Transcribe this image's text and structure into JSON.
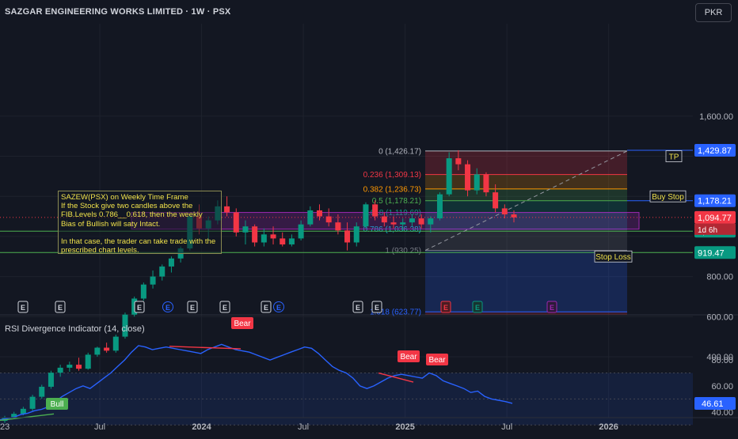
{
  "header": {
    "title": "SAZGAR ENGINEERING WORKS LIMITED · 1W · PSX",
    "currency": "PKR"
  },
  "colors": {
    "up": "#089981",
    "down": "#f23645",
    "accent": "#2962ff",
    "rsi": "#2962ff",
    "fib_text": "#cccccc"
  },
  "chart_data": [
    {
      "type": "candlestick",
      "title": "SAZGAR ENGINEERING WORKS LIMITED · 1W · PSX",
      "y_axis": {
        "ticks": [
          400,
          600,
          800,
          1000,
          1200,
          1400,
          1600
        ],
        "tick_labels": [
          "400.00",
          "600.00",
          "800.00",
          "",
          "",
          "",
          "1,600.00"
        ],
        "position": "right"
      },
      "x_axis": {
        "ticks": [
          "23",
          "Jul",
          "2024",
          "Jul",
          "2025",
          "Jul",
          "2026"
        ],
        "bold_ticks": [
          "2024",
          "2025",
          "2026"
        ]
      },
      "candles": [
        {
          "t": "2023-10",
          "o": 80,
          "h": 105,
          "l": 70,
          "c": 95
        },
        {
          "t": "2023-11",
          "o": 95,
          "h": 125,
          "l": 88,
          "c": 115
        },
        {
          "t": "2023-12",
          "o": 115,
          "h": 150,
          "l": 108,
          "c": 140
        },
        {
          "t": "2024-01",
          "o": 140,
          "h": 210,
          "l": 130,
          "c": 200
        },
        {
          "t": "2024-01",
          "o": 200,
          "h": 260,
          "l": 190,
          "c": 250
        },
        {
          "t": "2024-02",
          "o": 250,
          "h": 330,
          "l": 240,
          "c": 320
        },
        {
          "t": "2024-02",
          "o": 320,
          "h": 360,
          "l": 300,
          "c": 345
        },
        {
          "t": "2024-03",
          "o": 345,
          "h": 375,
          "l": 325,
          "c": 360
        },
        {
          "t": "2024-03",
          "o": 360,
          "h": 395,
          "l": 330,
          "c": 340
        },
        {
          "t": "2024-04",
          "o": 340,
          "h": 420,
          "l": 335,
          "c": 410
        },
        {
          "t": "2024-04",
          "o": 410,
          "h": 450,
          "l": 400,
          "c": 445
        },
        {
          "t": "2024-05",
          "o": 445,
          "h": 470,
          "l": 420,
          "c": 430
        },
        {
          "t": "2024-05",
          "o": 430,
          "h": 510,
          "l": 420,
          "c": 500
        },
        {
          "t": "2024-06",
          "o": 500,
          "h": 620,
          "l": 490,
          "c": 610
        },
        {
          "t": "2024-06",
          "o": 610,
          "h": 700,
          "l": 600,
          "c": 690
        },
        {
          "t": "2024-06",
          "o": 690,
          "h": 770,
          "l": 680,
          "c": 760
        },
        {
          "t": "2024-07",
          "o": 760,
          "h": 830,
          "l": 740,
          "c": 800
        },
        {
          "t": "2024-07",
          "o": 800,
          "h": 860,
          "l": 780,
          "c": 850
        },
        {
          "t": "2024-07",
          "o": 850,
          "h": 900,
          "l": 820,
          "c": 890
        },
        {
          "t": "2024-08",
          "o": 890,
          "h": 950,
          "l": 870,
          "c": 940
        },
        {
          "t": "2024-08",
          "o": 940,
          "h": 1110,
          "l": 930,
          "c": 1100
        },
        {
          "t": "2024-08",
          "o": 1100,
          "h": 1160,
          "l": 1010,
          "c": 1040
        },
        {
          "t": "2024-09",
          "o": 1040,
          "h": 1100,
          "l": 980,
          "c": 1080
        },
        {
          "t": "2024-09",
          "o": 1080,
          "h": 1180,
          "l": 1060,
          "c": 1150
        },
        {
          "t": "2024-09",
          "o": 1150,
          "h": 1200,
          "l": 1100,
          "c": 1120
        },
        {
          "t": "2024-10",
          "o": 1120,
          "h": 1140,
          "l": 1000,
          "c": 1020
        },
        {
          "t": "2024-10",
          "o": 1020,
          "h": 1080,
          "l": 960,
          "c": 1050
        },
        {
          "t": "2024-10",
          "o": 1050,
          "h": 1060,
          "l": 950,
          "c": 970
        },
        {
          "t": "2024-11",
          "o": 970,
          "h": 1040,
          "l": 950,
          "c": 1010
        },
        {
          "t": "2024-11",
          "o": 1010,
          "h": 1050,
          "l": 960,
          "c": 990
        },
        {
          "t": "2024-11",
          "o": 990,
          "h": 1020,
          "l": 950,
          "c": 960
        },
        {
          "t": "2024-12",
          "o": 960,
          "h": 1010,
          "l": 950,
          "c": 990
        },
        {
          "t": "2024-12",
          "o": 990,
          "h": 1080,
          "l": 980,
          "c": 1060
        },
        {
          "t": "2024-12",
          "o": 1060,
          "h": 1150,
          "l": 1050,
          "c": 1130
        },
        {
          "t": "2025-01",
          "o": 1130,
          "h": 1160,
          "l": 1080,
          "c": 1100
        },
        {
          "t": "2025-01",
          "o": 1100,
          "h": 1140,
          "l": 1050,
          "c": 1070
        },
        {
          "t": "2025-01",
          "o": 1070,
          "h": 1110,
          "l": 1010,
          "c": 1030
        },
        {
          "t": "2025-02",
          "o": 1030,
          "h": 1070,
          "l": 930,
          "c": 970
        },
        {
          "t": "2025-02",
          "o": 970,
          "h": 1070,
          "l": 950,
          "c": 1050
        },
        {
          "t": "2025-02",
          "o": 1050,
          "h": 1170,
          "l": 1040,
          "c": 1160
        },
        {
          "t": "2025-03",
          "o": 1160,
          "h": 1180,
          "l": 1080,
          "c": 1100
        },
        {
          "t": "2025-03",
          "o": 1100,
          "h": 1120,
          "l": 1050,
          "c": 1070
        },
        {
          "t": "2025-03",
          "o": 1070,
          "h": 1100,
          "l": 1040,
          "c": 1060
        },
        {
          "t": "2025-04",
          "o": 1060,
          "h": 1090,
          "l": 1030,
          "c": 1070
        },
        {
          "t": "2025-04",
          "o": 1070,
          "h": 1110,
          "l": 1050,
          "c": 1090
        },
        {
          "t": "2025-04",
          "o": 1090,
          "h": 1110,
          "l": 1040,
          "c": 1060
        },
        {
          "t": "2025-05",
          "o": 1060,
          "h": 1100,
          "l": 1020,
          "c": 1090
        },
        {
          "t": "2025-05",
          "o": 1090,
          "h": 1220,
          "l": 1080,
          "c": 1210
        },
        {
          "t": "2025-05",
          "o": 1210,
          "h": 1420,
          "l": 1200,
          "c": 1390
        },
        {
          "t": "2025-06",
          "o": 1390,
          "h": 1430,
          "l": 1330,
          "c": 1360
        },
        {
          "t": "2025-06",
          "o": 1360,
          "h": 1380,
          "l": 1200,
          "c": 1230
        },
        {
          "t": "2025-06",
          "o": 1230,
          "h": 1340,
          "l": 1210,
          "c": 1310
        },
        {
          "t": "2025-06",
          "o": 1310,
          "h": 1320,
          "l": 1200,
          "c": 1220
        },
        {
          "t": "2025-06",
          "o": 1220,
          "h": 1260,
          "l": 1120,
          "c": 1140
        },
        {
          "t": "2025-07",
          "o": 1140,
          "h": 1160,
          "l": 1090,
          "c": 1110
        },
        {
          "t": "2025-07",
          "o": 1110,
          "h": 1130,
          "l": 1070,
          "c": 1094.77
        }
      ],
      "fibonacci": {
        "levels": [
          {
            "ratio": "0",
            "value": 1426.17,
            "label": "0 (1,426.17)",
            "color": "#b2b5be"
          },
          {
            "ratio": "0.236",
            "value": 1309.13,
            "label": "0.236 (1,309.13)",
            "color": "#f23645"
          },
          {
            "ratio": "0.382",
            "value": 1236.73,
            "label": "0.382 (1,236.73)",
            "color": "#ff9800"
          },
          {
            "ratio": "0.5",
            "value": 1178.21,
            "label": "0.5 (1,178.21)",
            "color": "#4caf50"
          },
          {
            "ratio": "0.618",
            "value": 1119.69,
            "label": "0.618 (1,119.69)",
            "color": "#089981"
          },
          {
            "ratio": "0.786",
            "value": 1036.38,
            "label": "0.786 (1,036.38)",
            "color": "#00bcd4"
          },
          {
            "ratio": "1",
            "value": 930.25,
            "label": "1 (930.25)",
            "color": "#787b86"
          },
          {
            "ratio": "1.618",
            "value": 623.77,
            "label": "1.618 (623.77)",
            "color": "#2962ff"
          }
        ]
      },
      "horizontal_lines": [
        {
          "value": 1026.47,
          "color": "#4caf50"
        },
        {
          "value": 919.47,
          "color": "#4caf50"
        },
        {
          "value": 1429.87,
          "color": "#2962ff"
        },
        {
          "value": 1178.21,
          "color": "#2962ff"
        }
      ],
      "price_labels": [
        {
          "value": 1429.87,
          "text": "1,429.87",
          "bg": "#2962ff"
        },
        {
          "value": 1178.21,
          "text": "1,178.21",
          "bg": "#2962ff"
        },
        {
          "value": 1094.77,
          "text": "1,094.77",
          "bg": "#f23645"
        },
        {
          "value": 1026.47,
          "text": "1,026.47",
          "bg": "#089981"
        },
        {
          "value": 919.47,
          "text": "919.47",
          "bg": "#089981"
        }
      ],
      "countdown": "1d 6h",
      "annotations": [
        {
          "text": "TP",
          "value": 1400
        },
        {
          "text": "Buy Stop",
          "value": 1200
        },
        {
          "text": "Stop Loss",
          "value": 900
        }
      ],
      "earnings_markers": [
        "E",
        "E",
        "E",
        "E",
        "E",
        "E",
        "E",
        "E",
        "E",
        "E"
      ],
      "note": "SAZEW(PSX) on Weekly Time Frame\nIf the Stock give two candles above the FIB.Levels 0.786__0.618, then the weekly Bias of Bullish will saty Intact.\n\nIn that case, the trader can take trade with the prescribed chart levels."
    },
    {
      "type": "line",
      "title": "RSI Divergence Indicator (14, close)",
      "y_axis": {
        "ticks": [
          40,
          60,
          80
        ],
        "tick_labels": [
          "40.00",
          "60.00",
          "80.00"
        ]
      },
      "values": [
        34,
        35,
        36,
        38,
        39,
        41,
        42,
        44,
        48,
        52,
        55,
        58,
        60,
        58,
        62,
        66,
        70,
        75,
        80,
        86,
        91,
        90,
        88,
        89,
        90,
        89,
        88,
        87,
        86,
        85,
        88,
        90,
        92,
        90,
        88,
        87,
        86,
        84,
        82,
        80,
        82,
        84,
        86,
        88,
        90,
        89,
        85,
        80,
        75,
        72,
        70,
        66,
        60,
        58,
        60,
        63,
        66,
        68,
        69,
        68,
        67,
        66,
        70,
        68,
        64,
        62,
        60,
        58,
        55,
        56,
        52,
        50,
        49,
        48,
        46.61
      ],
      "last_value_label": "46.61",
      "divergence_labels": [
        {
          "text": "Bear",
          "type": "bear"
        },
        {
          "text": "Bear",
          "type": "bear"
        },
        {
          "text": "Bear",
          "type": "bear"
        },
        {
          "text": "Bull",
          "type": "bull"
        }
      ]
    }
  ]
}
